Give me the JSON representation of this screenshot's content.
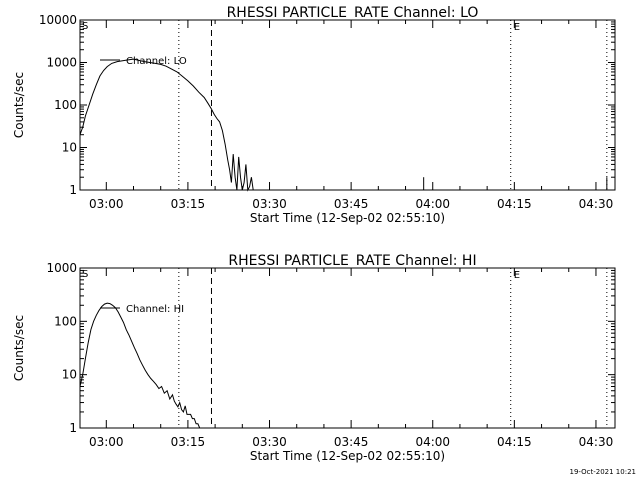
{
  "footer_timestamp": "19-Oct-2021 10:21",
  "chart_data": [
    {
      "type": "line",
      "title": "RHESSI PARTICLE_RATE Channel: LO",
      "xlabel": "Start Time (12-Sep-02 02:55:10)",
      "ylabel": "Counts/sec",
      "yscale": "log",
      "ylim": [
        1,
        10000
      ],
      "y_ticks": [
        {
          "value": 1,
          "label": "1"
        },
        {
          "value": 10,
          "label": "10"
        },
        {
          "value": 100,
          "label": "100"
        },
        {
          "value": 1000,
          "label": "1000"
        },
        {
          "value": 10000,
          "label": "10000"
        }
      ],
      "xlim": [
        "02:55:10",
        "04:33:30"
      ],
      "x_ticks": [
        {
          "value": "03:00",
          "label": "03:00"
        },
        {
          "value": "03:15",
          "label": "03:15"
        },
        {
          "value": "03:30",
          "label": "03:30"
        },
        {
          "value": "03:45",
          "label": "03:45"
        },
        {
          "value": "04:00",
          "label": "04:00"
        },
        {
          "value": "04:15",
          "label": "04:15"
        },
        {
          "value": "04:30",
          "label": "04:30"
        }
      ],
      "legend": {
        "position": "top-left",
        "entries": [
          "Channel: LO"
        ]
      },
      "markers": [
        {
          "time": "03:13:20",
          "style": "dotted",
          "label": ""
        },
        {
          "time": "03:19:20",
          "style": "dashed",
          "label": ""
        },
        {
          "time": "04:14:20",
          "style": "dotted",
          "label": "E"
        },
        {
          "time": "04:32:00",
          "style": "dotted",
          "label": ""
        }
      ],
      "corner_label": "S",
      "series": [
        {
          "name": "Channel: LO",
          "x": [
            "02:55:10",
            "02:55:40",
            "02:56:10",
            "02:56:50",
            "02:57:30",
            "02:58:10",
            "02:58:50",
            "02:59:30",
            "03:00:10",
            "03:01:00",
            "03:02:00",
            "03:03:00",
            "03:04:00",
            "03:05:00",
            "03:06:00",
            "03:07:00",
            "03:08:00",
            "03:09:00",
            "03:10:00",
            "03:11:00",
            "03:12:00",
            "03:13:00",
            "03:14:00",
            "03:15:00",
            "03:16:00",
            "03:17:00",
            "03:18:00",
            "03:18:40",
            "03:19:20",
            "03:19:50",
            "03:20:20",
            "03:20:50",
            "03:21:20",
            "03:21:50",
            "03:22:20",
            "03:22:40",
            "03:23:00",
            "03:23:20",
            "03:23:40",
            "03:24:00",
            "03:24:20",
            "03:24:40",
            "03:25:00",
            "03:25:20",
            "03:25:40",
            "03:26:00",
            "03:26:20",
            "03:26:40",
            "03:27:00",
            "03:27:20",
            "03:27:40",
            "03:28:00"
          ],
          "y": [
            20,
            30,
            55,
            100,
            180,
            300,
            480,
            650,
            800,
            950,
            1050,
            1100,
            1150,
            1200,
            1120,
            1050,
            1000,
            950,
            900,
            820,
            700,
            600,
            470,
            370,
            280,
            200,
            150,
            110,
            80,
            60,
            48,
            40,
            25,
            12,
            5,
            3,
            1.5,
            7,
            2,
            1,
            6,
            2,
            1,
            1.5,
            4,
            1,
            1.2,
            2,
            1,
            1,
            1,
            1
          ]
        }
      ],
      "spikes": [
        {
          "time": "03:58:20",
          "value": 2
        },
        {
          "time": "04:32:00",
          "value": 2
        }
      ]
    },
    {
      "type": "line",
      "title": "RHESSI PARTICLE_RATE Channel: HI",
      "xlabel": "Start Time (12-Sep-02 02:55:10)",
      "ylabel": "Counts/sec",
      "yscale": "log",
      "ylim": [
        1,
        1000
      ],
      "y_ticks": [
        {
          "value": 1,
          "label": "1"
        },
        {
          "value": 10,
          "label": "10"
        },
        {
          "value": 100,
          "label": "100"
        },
        {
          "value": 1000,
          "label": "1000"
        }
      ],
      "xlim": [
        "02:55:10",
        "04:33:30"
      ],
      "x_ticks": [
        {
          "value": "03:00",
          "label": "03:00"
        },
        {
          "value": "03:15",
          "label": "03:15"
        },
        {
          "value": "03:30",
          "label": "03:30"
        },
        {
          "value": "03:45",
          "label": "03:45"
        },
        {
          "value": "04:00",
          "label": "04:00"
        },
        {
          "value": "04:15",
          "label": "04:15"
        },
        {
          "value": "04:30",
          "label": "04:30"
        }
      ],
      "legend": {
        "position": "top-left",
        "entries": [
          "Channel: HI"
        ]
      },
      "markers": [
        {
          "time": "03:13:20",
          "style": "dotted",
          "label": ""
        },
        {
          "time": "03:19:20",
          "style": "dashed",
          "label": ""
        },
        {
          "time": "04:14:20",
          "style": "dotted",
          "label": "E"
        },
        {
          "time": "04:32:00",
          "style": "dotted",
          "label": ""
        }
      ],
      "corner_label": "S",
      "series": [
        {
          "name": "Channel: HI",
          "x": [
            "02:55:10",
            "02:55:40",
            "02:56:10",
            "02:56:40",
            "02:57:10",
            "02:57:40",
            "02:58:10",
            "02:58:40",
            "02:59:10",
            "02:59:40",
            "03:00:10",
            "03:00:40",
            "03:01:10",
            "03:01:40",
            "03:02:10",
            "03:02:40",
            "03:03:10",
            "03:03:40",
            "03:04:10",
            "03:04:40",
            "03:05:10",
            "03:05:40",
            "03:06:10",
            "03:06:40",
            "03:07:10",
            "03:07:40",
            "03:08:10",
            "03:08:40",
            "03:09:10",
            "03:09:40",
            "03:10:10",
            "03:10:40",
            "03:11:10",
            "03:11:40",
            "03:12:10",
            "03:12:30",
            "03:12:50",
            "03:13:10",
            "03:13:30",
            "03:13:50",
            "03:14:10",
            "03:14:30",
            "03:14:50",
            "03:15:10",
            "03:15:30",
            "03:15:50",
            "03:16:10",
            "03:16:30",
            "03:16:50",
            "03:17:10"
          ],
          "y": [
            6,
            10,
            20,
            40,
            70,
            100,
            130,
            160,
            190,
            210,
            220,
            215,
            200,
            180,
            150,
            120,
            95,
            70,
            55,
            42,
            32,
            25,
            19,
            15,
            12,
            10,
            8.5,
            7.5,
            6.5,
            5.5,
            6,
            4.5,
            5,
            3.5,
            4.2,
            3.2,
            2.8,
            2.5,
            3.0,
            2.2,
            2,
            2.6,
            1.8,
            1.8,
            1.8,
            1.5,
            1.5,
            1.2,
            1.2,
            1
          ]
        }
      ]
    }
  ]
}
